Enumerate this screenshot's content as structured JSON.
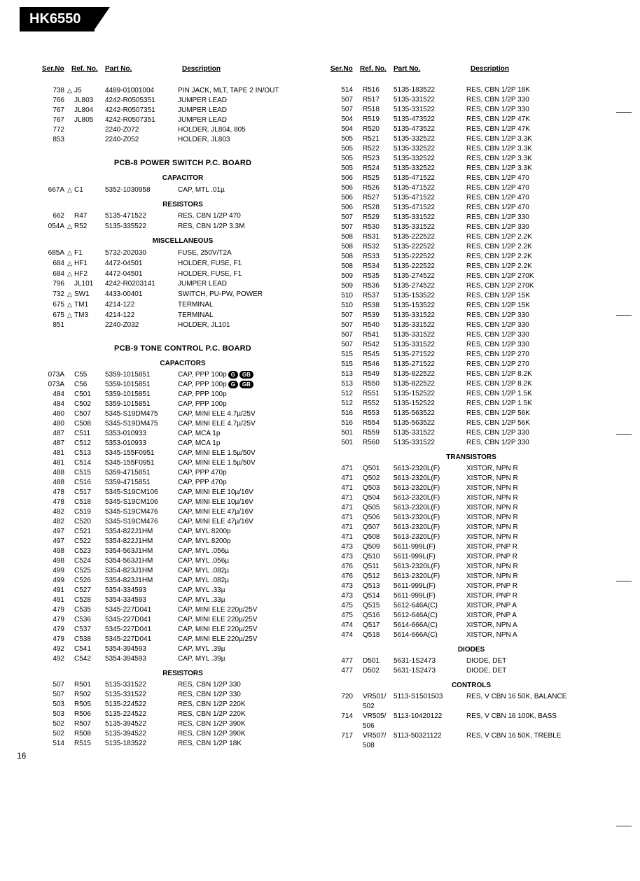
{
  "model": "HK6550",
  "page_number": "16",
  "head": {
    "ser": "Ser.No",
    "ref": "Ref. No.",
    "part": "Part No.",
    "desc": "Description"
  },
  "left": {
    "top_rows": [
      {
        "ser": "738",
        "sym": "△",
        "ref": "J5",
        "part": "4489-01001004",
        "desc": "PIN JACK, MLT, TAPE 2 IN/OUT"
      },
      {
        "ser": "766",
        "sym": "",
        "ref": "JL803",
        "part": "4242-R0505351",
        "desc": "JUMPER LEAD"
      },
      {
        "ser": "767",
        "sym": "",
        "ref": "JL804",
        "part": "4242-R0507351",
        "desc": "JUMPER LEAD"
      },
      {
        "ser": "767",
        "sym": "",
        "ref": "JL805",
        "part": "4242-R0507351",
        "desc": "JUMPER LEAD"
      },
      {
        "ser": "772",
        "sym": "",
        "ref": "",
        "part": "2240-Z072",
        "desc": "HOLDER, JL804, 805"
      },
      {
        "ser": "853",
        "sym": "",
        "ref": "",
        "part": "2240-Z052",
        "desc": "HOLDER, JL803"
      }
    ],
    "pcb8_title": "PCB-8 POWER SWITCH P.C. BOARD",
    "cap_title": "CAPACITOR",
    "cap_rows": [
      {
        "ser": "667A",
        "sym": "△",
        "ref": "C1",
        "part": "5352-1030958",
        "desc": "CAP, MTL .01µ"
      }
    ],
    "res_title": "RESISTORS",
    "res_rows": [
      {
        "ser": "662",
        "sym": "",
        "ref": "R47",
        "part": "5135-471522",
        "desc": "RES, CBN 1/2P 470"
      },
      {
        "ser": "054A",
        "sym": "△",
        "ref": "R52",
        "part": "5135-335522",
        "desc": "RES, CBN 1/2P 3.3M"
      }
    ],
    "misc_title": "MISCELLANEOUS",
    "misc_rows": [
      {
        "ser": "685A",
        "sym": "△",
        "ref": "F1",
        "part": "5732-202030",
        "desc": "FUSE, 250V/T2A"
      },
      {
        "ser": "684",
        "sym": "△",
        "ref": "HF1",
        "part": "4472-04501",
        "desc": "HOLDER, FUSE, F1"
      },
      {
        "ser": "684",
        "sym": "△",
        "ref": "HF2",
        "part": "4472-04501",
        "desc": "HOLDER, FUSE, F1"
      },
      {
        "ser": "796",
        "sym": "",
        "ref": "JL101",
        "part": "4242-R0203141",
        "desc": "JUMPER LEAD"
      },
      {
        "ser": "732",
        "sym": "△",
        "ref": "SW1",
        "part": "4433-00401",
        "desc": "SWITCH, PU-PW, POWER"
      },
      {
        "ser": "675",
        "sym": "△",
        "ref": "TM1",
        "part": "4214-122",
        "desc": "TERMINAL"
      },
      {
        "ser": "675",
        "sym": "△",
        "ref": "TM3",
        "part": "4214-122",
        "desc": "TERMINAL"
      },
      {
        "ser": "851",
        "sym": "",
        "ref": "",
        "part": "2240-Z032",
        "desc": "HOLDER, JL101"
      }
    ],
    "pcb9_title": "PCB-9 TONE CONTROL P.C. BOARD",
    "cap2_title": "CAPACITORS",
    "cap2_rows": [
      {
        "ser": "073A",
        "sym": "",
        "ref": "C55",
        "part": "5359-1015851",
        "desc": "CAP, PPP 100p",
        "pills": [
          "G",
          "GB"
        ]
      },
      {
        "ser": "073A",
        "sym": "",
        "ref": "C56",
        "part": "5359-1015851",
        "desc": "CAP, PPP 100p",
        "pills": [
          "G",
          "GB"
        ]
      },
      {
        "ser": "484",
        "sym": "",
        "ref": "C501",
        "part": "5359-1015851",
        "desc": "CAP, PPP 100p"
      },
      {
        "ser": "484",
        "sym": "",
        "ref": "C502",
        "part": "5359-1015851",
        "desc": "CAP, PPP 100p"
      },
      {
        "ser": "480",
        "sym": "",
        "ref": "C507",
        "part": "5345-S19DM475",
        "desc": "CAP, MINI ELE 4.7µ/25V"
      },
      {
        "ser": "480",
        "sym": "",
        "ref": "C508",
        "part": "5345-S19DM475",
        "desc": "CAP, MINI ELE 4.7µ/25V"
      },
      {
        "ser": "487",
        "sym": "",
        "ref": "C511",
        "part": "5353-010933",
        "desc": "CAP, MCA 1p"
      },
      {
        "ser": "487",
        "sym": "",
        "ref": "C512",
        "part": "5353-010933",
        "desc": "CAP, MCA 1p"
      },
      {
        "ser": "481",
        "sym": "",
        "ref": "C513",
        "part": "5345-155F0951",
        "desc": "CAP, MINI ELE 1.5µ/50V"
      },
      {
        "ser": "481",
        "sym": "",
        "ref": "C514",
        "part": "5345-155F0951",
        "desc": "CAP, MINI ELE 1.5µ/50V"
      },
      {
        "ser": "488",
        "sym": "",
        "ref": "C515",
        "part": "5359-4715851",
        "desc": "CAP, PPP 470p"
      },
      {
        "ser": "488",
        "sym": "",
        "ref": "C516",
        "part": "5359-4715851",
        "desc": "CAP, PPP 470p"
      },
      {
        "ser": "478",
        "sym": "",
        "ref": "C517",
        "part": "5345-S19CM106",
        "desc": "CAP, MINI ELE 10µ/16V"
      },
      {
        "ser": "478",
        "sym": "",
        "ref": "C518",
        "part": "5345-S19CM106",
        "desc": "CAP, MINI ELE 10µ/16V"
      },
      {
        "ser": "482",
        "sym": "",
        "ref": "C519",
        "part": "5345-S19CM476",
        "desc": "CAP, MINI ELE 47µ/16V"
      },
      {
        "ser": "482",
        "sym": "",
        "ref": "C520",
        "part": "5345-S19CM476",
        "desc": "CAP, MINI ELE 47µ/16V"
      },
      {
        "ser": "497",
        "sym": "",
        "ref": "C521",
        "part": "5354-822J1HM",
        "desc": "CAP, MYL 8200p"
      },
      {
        "ser": "497",
        "sym": "",
        "ref": "C522",
        "part": "5354-822J1HM",
        "desc": "CAP, MYL 8200p"
      },
      {
        "ser": "498",
        "sym": "",
        "ref": "C523",
        "part": "5354-563J1HM",
        "desc": "CAP, MYL .056µ"
      },
      {
        "ser": "498",
        "sym": "",
        "ref": "C524",
        "part": "5354-563J1HM",
        "desc": "CAP, MYL .056µ"
      },
      {
        "ser": "499",
        "sym": "",
        "ref": "C525",
        "part": "5354-823J1HM",
        "desc": "CAP, MYL .082µ"
      },
      {
        "ser": "499",
        "sym": "",
        "ref": "C526",
        "part": "5354-823J1HM",
        "desc": "CAP, MYL .082µ"
      },
      {
        "ser": "491",
        "sym": "",
        "ref": "C527",
        "part": "5354-334593",
        "desc": "CAP, MYL .33µ"
      },
      {
        "ser": "491",
        "sym": "",
        "ref": "C528",
        "part": "5354-334593",
        "desc": "CAP, MYL .33µ"
      },
      {
        "ser": "479",
        "sym": "",
        "ref": "C535",
        "part": "5345-227D041",
        "desc": "CAP, MINI ELE 220µ/25V"
      },
      {
        "ser": "479",
        "sym": "",
        "ref": "C536",
        "part": "5345-227D041",
        "desc": "CAP, MINI ELE 220µ/25V"
      },
      {
        "ser": "479",
        "sym": "",
        "ref": "C537",
        "part": "5345-227D041",
        "desc": "CAP, MINI ELE 220µ/25V"
      },
      {
        "ser": "479",
        "sym": "",
        "ref": "C538",
        "part": "5345-227D041",
        "desc": "CAP, MINI ELE 220µ/25V"
      },
      {
        "ser": "492",
        "sym": "",
        "ref": "C541",
        "part": "5354-394593",
        "desc": "CAP, MYL .39µ"
      },
      {
        "ser": "492",
        "sym": "",
        "ref": "C542",
        "part": "5354-394593",
        "desc": "CAP, MYL .39µ"
      }
    ],
    "res2_title": "RESISTORS",
    "res2_rows": [
      {
        "ser": "507",
        "sym": "",
        "ref": "R501",
        "part": "5135-331522",
        "desc": "RES, CBN 1/2P 330"
      },
      {
        "ser": "507",
        "sym": "",
        "ref": "R502",
        "part": "5135-331522",
        "desc": "RES, CBN 1/2P 330"
      },
      {
        "ser": "503",
        "sym": "",
        "ref": "R505",
        "part": "5135-224522",
        "desc": "RES, CBN 1/2P 220K"
      },
      {
        "ser": "503",
        "sym": "",
        "ref": "R506",
        "part": "5135-224522",
        "desc": "RES, CBN 1/2P 220K"
      },
      {
        "ser": "502",
        "sym": "",
        "ref": "R507",
        "part": "5135-394522",
        "desc": "RES, CBN 1/2P 390K"
      },
      {
        "ser": "502",
        "sym": "",
        "ref": "R508",
        "part": "5135-394522",
        "desc": "RES, CBN 1/2P 390K"
      },
      {
        "ser": "514",
        "sym": "",
        "ref": "R515",
        "part": "5135-183522",
        "desc": "RES, CBN 1/2P 18K"
      }
    ]
  },
  "right": {
    "res_rows": [
      {
        "ser": "514",
        "ref": "R516",
        "part": "5135-183522",
        "desc": "RES, CBN 1/2P 18K"
      },
      {
        "ser": "507",
        "ref": "R517",
        "part": "5135-331522",
        "desc": "RES, CBN 1/2P 330"
      },
      {
        "ser": "507",
        "ref": "R518",
        "part": "5135-331522",
        "desc": "RES, CBN 1/2P 330"
      },
      {
        "ser": "504",
        "ref": "R519",
        "part": "5135-473522",
        "desc": "RES, CBN 1/2P 47K"
      },
      {
        "ser": "504",
        "ref": "R520",
        "part": "5135-473522",
        "desc": "RES, CBN 1/2P 47K"
      },
      {
        "ser": "505",
        "ref": "R521",
        "part": "5135-332522",
        "desc": "RES, CBN 1/2P 3.3K"
      },
      {
        "ser": "505",
        "ref": "R522",
        "part": "5135-332522",
        "desc": "RES, CBN 1/2P 3.3K"
      },
      {
        "ser": "505",
        "ref": "R523",
        "part": "5135-332522",
        "desc": "RES, CBN 1/2P 3.3K"
      },
      {
        "ser": "505",
        "ref": "R524",
        "part": "5135-332522",
        "desc": "RES, CBN 1/2P 3.3K"
      },
      {
        "ser": "506",
        "ref": "R525",
        "part": "5135-471522",
        "desc": "RES, CBN 1/2P 470"
      },
      {
        "ser": "506",
        "ref": "R526",
        "part": "5135-471522",
        "desc": "RES, CBN 1/2P 470"
      },
      {
        "ser": "506",
        "ref": "R527",
        "part": "5135-471522",
        "desc": "RES, CBN 1/2P 470"
      },
      {
        "ser": "506",
        "ref": "R528",
        "part": "5135-471522",
        "desc": "RES, CBN 1/2P 470"
      },
      {
        "ser": "507",
        "ref": "R529",
        "part": "5135-331522",
        "desc": "RES, CBN 1/2P 330"
      },
      {
        "ser": "507",
        "ref": "R530",
        "part": "5135-331522",
        "desc": "RES, CBN 1/2P 330"
      },
      {
        "ser": "508",
        "ref": "R531",
        "part": "5135-222522",
        "desc": "RES, CBN 1/2P 2.2K"
      },
      {
        "ser": "508",
        "ref": "R532",
        "part": "5135-222522",
        "desc": "RES, CBN 1/2P 2.2K"
      },
      {
        "ser": "508",
        "ref": "R533",
        "part": "5135-222522",
        "desc": "RES, CBN 1/2P 2.2K"
      },
      {
        "ser": "508",
        "ref": "R534",
        "part": "5135-222522",
        "desc": "RES, CBN 1/2P 2.2K"
      },
      {
        "ser": "509",
        "ref": "R535",
        "part": "5135-274522",
        "desc": "RES, CBN 1/2P 270K"
      },
      {
        "ser": "509",
        "ref": "R536",
        "part": "5135-274522",
        "desc": "RES, CBN 1/2P 270K"
      },
      {
        "ser": "510",
        "ref": "R537",
        "part": "5135-153522",
        "desc": "RES, CBN 1/2P 15K"
      },
      {
        "ser": "510",
        "ref": "R538",
        "part": "5135-153522",
        "desc": "RES, CBN 1/2P 15K"
      },
      {
        "ser": "507",
        "ref": "R539",
        "part": "5135-331522",
        "desc": "RES, CBN 1/2P 330"
      },
      {
        "ser": "507",
        "ref": "R540",
        "part": "5135-331522",
        "desc": "RES, CBN 1/2P 330"
      },
      {
        "ser": "507",
        "ref": "R541",
        "part": "5135-331522",
        "desc": "RES, CBN 1/2P 330"
      },
      {
        "ser": "507",
        "ref": "R542",
        "part": "5135-331522",
        "desc": "RES, CBN 1/2P 330"
      },
      {
        "ser": "515",
        "ref": "R545",
        "part": "5135-271522",
        "desc": "RES, CBN 1/2P 270"
      },
      {
        "ser": "515",
        "ref": "R546",
        "part": "5135-271522",
        "desc": "RES, CBN 1/2P 270"
      },
      {
        "ser": "513",
        "ref": "R549",
        "part": "5135-822522",
        "desc": "RES, CBN 1/2P 8.2K"
      },
      {
        "ser": "513",
        "ref": "R550",
        "part": "5135-822522",
        "desc": "RES, CBN 1/2P 8.2K"
      },
      {
        "ser": "512",
        "ref": "R551",
        "part": "5135-152522",
        "desc": "RES, CBN 1/2P 1.5K"
      },
      {
        "ser": "512",
        "ref": "R552",
        "part": "5135-152522",
        "desc": "RES, CBN 1/2P 1.5K"
      },
      {
        "ser": "516",
        "ref": "R553",
        "part": "5135-563522",
        "desc": "RES, CBN 1/2P 56K"
      },
      {
        "ser": "516",
        "ref": "R554",
        "part": "5135-563522",
        "desc": "RES, CBN 1/2P 56K"
      },
      {
        "ser": "501",
        "ref": "R559",
        "part": "5135-331522",
        "desc": "RES, CBN 1/2P 330"
      },
      {
        "ser": "501",
        "ref": "R560",
        "part": "5135-331522",
        "desc": "RES, CBN 1/2P 330"
      }
    ],
    "tr_title": "TRANSISTORS",
    "tr_rows": [
      {
        "ser": "471",
        "ref": "Q501",
        "part": "5613-2320L(F)",
        "desc": "XISTOR, NPN R"
      },
      {
        "ser": "471",
        "ref": "Q502",
        "part": "5613-2320L(F)",
        "desc": "XISTOR, NPN R"
      },
      {
        "ser": "471",
        "ref": "Q503",
        "part": "5613-2320L(F)",
        "desc": "XISTOR, NPN R"
      },
      {
        "ser": "471",
        "ref": "Q504",
        "part": "5613-2320L(F)",
        "desc": "XISTOR, NPN R"
      },
      {
        "ser": "471",
        "ref": "Q505",
        "part": "5613-2320L(F)",
        "desc": "XISTOR, NPN R"
      },
      {
        "ser": "471",
        "ref": "Q506",
        "part": "5613-2320L(F)",
        "desc": "XISTOR, NPN R"
      },
      {
        "ser": "471",
        "ref": "Q507",
        "part": "5613-2320L(F)",
        "desc": "XISTOR, NPN R"
      },
      {
        "ser": "471",
        "ref": "Q508",
        "part": "5613-2320L(F)",
        "desc": "XISTOR, NPN R"
      },
      {
        "ser": "473",
        "ref": "Q509",
        "part": "5611-999L(F)",
        "desc": "XISTOR, PNP R"
      },
      {
        "ser": "473",
        "ref": "Q510",
        "part": "5611-999L(F)",
        "desc": "XISTOR, PNP R"
      },
      {
        "ser": "476",
        "ref": "Q511",
        "part": "5613-2320L(F)",
        "desc": "XISTOR, NPN R"
      },
      {
        "ser": "476",
        "ref": "Q512",
        "part": "5613-2320L(F)",
        "desc": "XISTOR, NPN R"
      },
      {
        "ser": "473",
        "ref": "Q513",
        "part": "5611-999L(F)",
        "desc": "XISTOR, PNP R"
      },
      {
        "ser": "473",
        "ref": "Q514",
        "part": "5611-999L(F)",
        "desc": "XISTOR, PNP R"
      },
      {
        "ser": "475",
        "ref": "Q515",
        "part": "5612-646A(C)",
        "desc": "XISTOR, PNP A"
      },
      {
        "ser": "475",
        "ref": "Q516",
        "part": "5612-646A(C)",
        "desc": "XISTOR, PNP A"
      },
      {
        "ser": "474",
        "ref": "Q517",
        "part": "5614-666A(C)",
        "desc": "XISTOR, NPN A"
      },
      {
        "ser": "474",
        "ref": "Q518",
        "part": "5614-666A(C)",
        "desc": "XISTOR, NPN A"
      }
    ],
    "di_title": "DIODES",
    "di_rows": [
      {
        "ser": "477",
        "ref": "D501",
        "part": "5631-1S2473",
        "desc": "DIODE, DET"
      },
      {
        "ser": "477",
        "ref": "D502",
        "part": "5631-1S2473",
        "desc": "DIODE, DET"
      }
    ],
    "ctrl_title": "CONTROLS",
    "ctrl_rows": [
      {
        "ser": "720",
        "ref": "VR501/",
        "part": "5113-S1501503",
        "desc": "RES, V CBN 16 50K, BALANCE"
      },
      {
        "ser": "",
        "ref": "502",
        "part": "",
        "desc": ""
      },
      {
        "ser": "714",
        "ref": "VR505/",
        "part": "5113-10420122",
        "desc": "RES, V CBN 16 100K, BASS"
      },
      {
        "ser": "",
        "ref": "506",
        "part": "",
        "desc": ""
      },
      {
        "ser": "717",
        "ref": "VR507/",
        "part": "5113-50321122",
        "desc": "RES, V CBN 16 50K, TREBLE"
      },
      {
        "ser": "",
        "ref": "508",
        "part": "",
        "desc": ""
      }
    ]
  }
}
